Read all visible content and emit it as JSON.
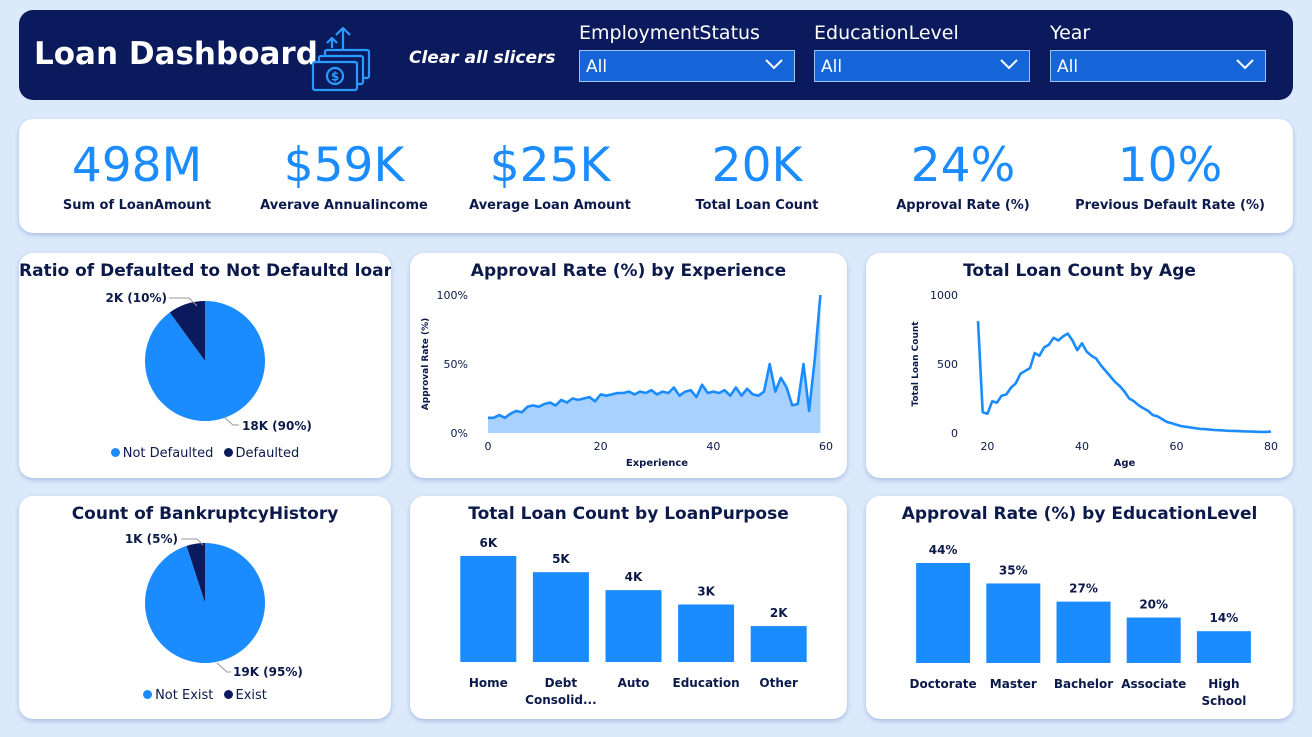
{
  "header": {
    "title": "Loan Dashboard",
    "logo_icon": "money-upload-icon",
    "clear_label": "Clear all slicers",
    "slicers": [
      {
        "label": "EmploymentStatus",
        "value": "All"
      },
      {
        "label": "EducationLevel",
        "value": "All"
      },
      {
        "label": "Year",
        "value": "All"
      }
    ]
  },
  "kpis": [
    {
      "value": "498M",
      "label": "Sum of LoanAmount"
    },
    {
      "value": "$59K",
      "label": "Averave Annualincome"
    },
    {
      "value": "$25K",
      "label": "Average Loan Amount"
    },
    {
      "value": "20K",
      "label": "Total Loan Count"
    },
    {
      "value": "24%",
      "label": "Approval Rate (%)"
    },
    {
      "value": "10%",
      "label": "Previous Default Rate (%)"
    }
  ],
  "colors": {
    "primary": "#1a8cff",
    "dark": "#0b1a5c",
    "area_fill": "#a8d1ff",
    "background": "#dbe9fb"
  },
  "chart_data": [
    {
      "type": "pie",
      "title": "Ratio of Defaulted to Not Defaultd loans",
      "slices": [
        {
          "name": "Not Defaulted",
          "value": 90,
          "label": "18K (90%)",
          "color": "#1a8cff"
        },
        {
          "name": "Defaulted",
          "value": 10,
          "label": "2K (10%)",
          "color": "#0b1a5c"
        }
      ],
      "legend": "bottom"
    },
    {
      "type": "area",
      "title": "Approval Rate (%) by Experience",
      "xlabel": "Experience",
      "ylabel": "Approval Rate (%)",
      "xlim": [
        0,
        60
      ],
      "ylim": [
        0,
        100
      ],
      "x_ticks": [
        0,
        20,
        40,
        60
      ],
      "y_ticks": [
        {
          "v": 0,
          "t": "0%"
        },
        {
          "v": 50,
          "t": "50%"
        },
        {
          "v": 100,
          "t": "100%"
        }
      ],
      "x": [
        0,
        1,
        2,
        3,
        4,
        5,
        6,
        7,
        8,
        9,
        10,
        11,
        12,
        13,
        14,
        15,
        16,
        17,
        18,
        19,
        20,
        21,
        22,
        23,
        24,
        25,
        26,
        27,
        28,
        29,
        30,
        31,
        32,
        33,
        34,
        35,
        36,
        37,
        38,
        39,
        40,
        41,
        42,
        43,
        44,
        45,
        46,
        47,
        48,
        49,
        50,
        51,
        52,
        53,
        54,
        55,
        56,
        57,
        58,
        59
      ],
      "y": [
        11,
        11,
        13,
        11,
        14,
        16,
        15,
        19,
        20,
        19,
        21,
        22,
        20,
        24,
        22,
        25,
        24,
        25,
        26,
        23,
        28,
        27,
        28,
        29,
        29,
        30,
        28,
        30,
        29,
        31,
        28,
        30,
        29,
        33,
        27,
        30,
        31,
        26,
        35,
        29,
        30,
        29,
        31,
        27,
        33,
        27,
        32,
        28,
        27,
        30,
        50,
        30,
        40,
        33,
        20,
        21,
        50,
        16,
        53,
        100
      ]
    },
    {
      "type": "line",
      "title": "Total Loan Count by Age",
      "xlabel": "Age",
      "ylabel": "Total Loan Count",
      "xlim": [
        18,
        80
      ],
      "ylim": [
        0,
        1000
      ],
      "x_ticks": [
        20,
        40,
        60,
        80
      ],
      "y_ticks": [
        {
          "v": 0,
          "t": "0"
        },
        {
          "v": 500,
          "t": "500"
        },
        {
          "v": 1000,
          "t": "1000"
        }
      ],
      "x": [
        18,
        19,
        20,
        21,
        22,
        23,
        24,
        25,
        26,
        27,
        28,
        29,
        30,
        31,
        32,
        33,
        34,
        35,
        36,
        37,
        38,
        39,
        40,
        41,
        42,
        43,
        44,
        45,
        46,
        47,
        48,
        49,
        50,
        51,
        52,
        53,
        54,
        55,
        56,
        57,
        58,
        59,
        60,
        61,
        62,
        63,
        64,
        65,
        66,
        67,
        68,
        69,
        70,
        71,
        72,
        73,
        74,
        75,
        76,
        77,
        78,
        79,
        80
      ],
      "y": [
        810,
        150,
        140,
        230,
        220,
        270,
        280,
        330,
        360,
        430,
        450,
        470,
        580,
        560,
        620,
        640,
        690,
        670,
        700,
        720,
        670,
        600,
        650,
        590,
        560,
        540,
        490,
        450,
        410,
        370,
        340,
        300,
        250,
        230,
        200,
        180,
        160,
        130,
        120,
        100,
        80,
        70,
        60,
        50,
        45,
        40,
        35,
        30,
        28,
        25,
        22,
        20,
        18,
        16,
        15,
        14,
        12,
        11,
        10,
        9,
        8,
        8,
        10
      ]
    },
    {
      "type": "pie",
      "title": "Count of BankruptcyHistory",
      "slices": [
        {
          "name": "Not Exist",
          "value": 95,
          "label": "19K (95%)",
          "color": "#1a8cff"
        },
        {
          "name": "Exist",
          "value": 5,
          "label": "1K (5%)",
          "color": "#0b1a5c"
        }
      ],
      "legend": "bottom"
    },
    {
      "type": "bar",
      "title": "Total Loan Count by LoanPurpose",
      "categories": [
        [
          "Home"
        ],
        [
          "Debt",
          "Consolid..."
        ],
        [
          "Auto"
        ],
        [
          "Education"
        ],
        [
          "Other"
        ]
      ],
      "values": [
        5.9,
        5.0,
        4.0,
        3.2,
        2.0
      ],
      "data_labels": [
        "6K",
        "5K",
        "4K",
        "3K",
        "2K"
      ]
    },
    {
      "type": "bar",
      "title": "Approval Rate (%) by EducationLevel",
      "categories": [
        [
          "Doctorate"
        ],
        [
          "Master"
        ],
        [
          "Bachelor"
        ],
        [
          "Associate"
        ],
        [
          "High",
          "School"
        ]
      ],
      "values": [
        44,
        35,
        27,
        20,
        14
      ],
      "data_labels": [
        "44%",
        "35%",
        "27%",
        "20%",
        "14%"
      ]
    }
  ]
}
